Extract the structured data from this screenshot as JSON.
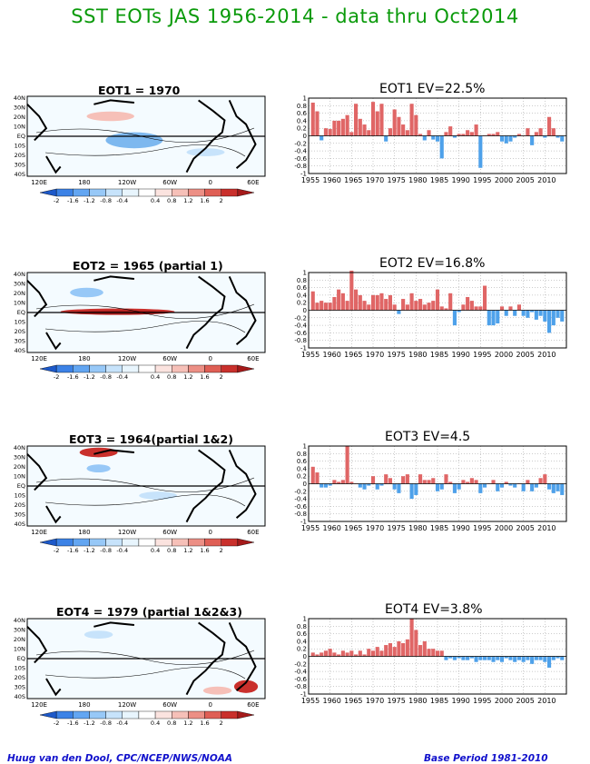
{
  "title": "SST EOTs JAS 1956-2014 - data thru Oct2014",
  "footer_left": "Huug van den Dool, CPC/NCEP/NWS/NOAA",
  "footer_right": "Base Period 1981-2010",
  "map": {
    "lat_labels": [
      "40N",
      "30N",
      "20N",
      "10N",
      "EQ",
      "10S",
      "20S",
      "30S",
      "40S"
    ],
    "lon_labels": [
      "120E",
      "180",
      "120W",
      "60W",
      "0",
      "60E"
    ],
    "colorbar_labels": [
      "-2",
      "-1.6",
      "-1.2",
      "-0.8",
      "-0.4",
      "0.4",
      "0.8",
      "1.2",
      "1.6",
      "2"
    ],
    "colorbar_colors": [
      "#1d59c9",
      "#3c82e6",
      "#63a6f2",
      "#97c8f7",
      "#c7e3fb",
      "#e8f5fd",
      "#ffffff",
      "#fbe3df",
      "#f6c0b8",
      "#ec8f85",
      "#df5f55",
      "#c9302c",
      "#a51a1a"
    ]
  },
  "bar_axis": {
    "yticks": [
      "1",
      "0.8",
      "0.6",
      "0.4",
      "0.2",
      "0",
      "-0.2",
      "-0.4",
      "-0.6",
      "-0.8",
      "-1"
    ],
    "xticks": [
      "1955",
      "1960",
      "1965",
      "1970",
      "1975",
      "1980",
      "1985",
      "1990",
      "1995",
      "2000",
      "2005",
      "2010"
    ]
  },
  "panels": [
    {
      "map_title": "EOT1    = 1970",
      "bar_title": "EOT1  EV=22.5%"
    },
    {
      "map_title": "EOT2    = 1965 (partial 1)",
      "bar_title": "EOT2  EV=16.8%"
    },
    {
      "map_title": "EOT3    = 1964(partial 1&2)",
      "bar_title": "EOT3   EV=4.5"
    },
    {
      "map_title": "EOT4    = 1979 (partial 1&2&3)",
      "bar_title": "EOT4   EV=3.8%"
    }
  ],
  "chart_data": [
    {
      "type": "bar",
      "title": "EOT1  EV=22.5%",
      "x": [
        1956,
        1957,
        1958,
        1959,
        1960,
        1961,
        1962,
        1963,
        1964,
        1965,
        1966,
        1967,
        1968,
        1969,
        1970,
        1971,
        1972,
        1973,
        1974,
        1975,
        1976,
        1977,
        1978,
        1979,
        1980,
        1981,
        1982,
        1983,
        1984,
        1985,
        1986,
        1987,
        1988,
        1989,
        1990,
        1991,
        1992,
        1993,
        1994,
        1995,
        1996,
        1997,
        1998,
        1999,
        2000,
        2001,
        2002,
        2003,
        2004,
        2005,
        2006,
        2007,
        2008,
        2009,
        2010,
        2011,
        2012,
        2013,
        2014
      ],
      "values": [
        0.88,
        0.65,
        -0.12,
        0.2,
        0.18,
        0.4,
        0.4,
        0.45,
        0.55,
        0.1,
        0.85,
        0.45,
        0.3,
        0.15,
        0.9,
        0.65,
        0.85,
        -0.15,
        0.2,
        0.7,
        0.5,
        0.3,
        0.15,
        0.85,
        0.55,
        0.05,
        -0.12,
        0.15,
        -0.1,
        -0.15,
        -0.6,
        0.1,
        0.25,
        -0.05,
        0.05,
        0.05,
        0.15,
        0.1,
        0.3,
        -0.85,
        0.0,
        0.05,
        0.05,
        0.1,
        -0.15,
        -0.2,
        -0.15,
        -0.05,
        0.05,
        0.0,
        0.2,
        -0.25,
        0.1,
        0.2,
        -0.05,
        0.5,
        0.2,
        -0.05,
        -0.15
      ],
      "ylim": [
        -1,
        1
      ]
    },
    {
      "type": "bar",
      "title": "EOT2  EV=16.8%",
      "x": [
        1956,
        1957,
        1958,
        1959,
        1960,
        1961,
        1962,
        1963,
        1964,
        1965,
        1966,
        1967,
        1968,
        1969,
        1970,
        1971,
        1972,
        1973,
        1974,
        1975,
        1976,
        1977,
        1978,
        1979,
        1980,
        1981,
        1982,
        1983,
        1984,
        1985,
        1986,
        1987,
        1988,
        1989,
        1990,
        1991,
        1992,
        1993,
        1994,
        1995,
        1996,
        1997,
        1998,
        1999,
        2000,
        2001,
        2002,
        2003,
        2004,
        2005,
        2006,
        2007,
        2008,
        2009,
        2010,
        2011,
        2012,
        2013,
        2014
      ],
      "values": [
        0.5,
        0.2,
        0.25,
        0.2,
        0.2,
        0.35,
        0.55,
        0.45,
        0.25,
        1.05,
        0.55,
        0.4,
        0.25,
        0.15,
        0.4,
        0.4,
        0.45,
        0.3,
        0.4,
        0.15,
        -0.1,
        0.3,
        0.15,
        0.45,
        0.25,
        0.3,
        0.15,
        0.2,
        0.25,
        0.55,
        0.1,
        0.05,
        0.45,
        -0.4,
        -0.05,
        0.15,
        0.35,
        0.25,
        0.1,
        0.1,
        0.65,
        -0.4,
        -0.4,
        -0.35,
        0.1,
        -0.15,
        0.1,
        -0.15,
        0.15,
        -0.15,
        -0.2,
        -0.05,
        -0.25,
        -0.15,
        -0.3,
        -0.6,
        -0.4,
        -0.2,
        -0.3
      ],
      "ylim": [
        -1,
        1
      ]
    },
    {
      "type": "bar",
      "title": "EOT3   EV=4.5",
      "x": [
        1956,
        1957,
        1958,
        1959,
        1960,
        1961,
        1962,
        1963,
        1964,
        1965,
        1966,
        1967,
        1968,
        1969,
        1970,
        1971,
        1972,
        1973,
        1974,
        1975,
        1976,
        1977,
        1978,
        1979,
        1980,
        1981,
        1982,
        1983,
        1984,
        1985,
        1986,
        1987,
        1988,
        1989,
        1990,
        1991,
        1992,
        1993,
        1994,
        1995,
        1996,
        1997,
        1998,
        1999,
        2000,
        2001,
        2002,
        2003,
        2004,
        2005,
        2006,
        2007,
        2008,
        2009,
        2010,
        2011,
        2012,
        2013,
        2014
      ],
      "values": [
        0.45,
        0.3,
        -0.1,
        -0.1,
        -0.05,
        0.1,
        0.05,
        0.1,
        1.0,
        0.05,
        0.0,
        -0.1,
        -0.15,
        -0.05,
        0.2,
        -0.15,
        -0.05,
        0.25,
        0.15,
        -0.15,
        -0.25,
        0.2,
        0.25,
        -0.4,
        -0.3,
        0.25,
        0.1,
        0.1,
        0.15,
        -0.2,
        -0.15,
        0.25,
        0.05,
        -0.25,
        -0.15,
        0.1,
        0.05,
        0.15,
        0.1,
        -0.25,
        -0.1,
        0.0,
        0.1,
        -0.2,
        -0.1,
        0.05,
        -0.05,
        -0.1,
        0.0,
        -0.2,
        0.1,
        -0.2,
        -0.1,
        0.15,
        0.25,
        -0.15,
        -0.25,
        -0.2,
        -0.3
      ],
      "ylim": [
        -1,
        1
      ]
    },
    {
      "type": "bar",
      "title": "EOT4   EV=3.8%",
      "x": [
        1956,
        1957,
        1958,
        1959,
        1960,
        1961,
        1962,
        1963,
        1964,
        1965,
        1966,
        1967,
        1968,
        1969,
        1970,
        1971,
        1972,
        1973,
        1974,
        1975,
        1976,
        1977,
        1978,
        1979,
        1980,
        1981,
        1982,
        1983,
        1984,
        1985,
        1986,
        1987,
        1988,
        1989,
        1990,
        1991,
        1992,
        1993,
        1994,
        1995,
        1996,
        1997,
        1998,
        1999,
        2000,
        2001,
        2002,
        2003,
        2004,
        2005,
        2006,
        2007,
        2008,
        2009,
        2010,
        2011,
        2012,
        2013,
        2014
      ],
      "values": [
        0.1,
        0.05,
        0.1,
        0.15,
        0.2,
        0.1,
        0.05,
        0.15,
        0.1,
        0.15,
        0.05,
        0.15,
        0.05,
        0.2,
        0.15,
        0.25,
        0.15,
        0.3,
        0.35,
        0.25,
        0.4,
        0.35,
        0.45,
        1.0,
        0.7,
        0.3,
        0.4,
        0.2,
        0.2,
        0.15,
        0.15,
        -0.1,
        -0.05,
        -0.1,
        -0.05,
        -0.1,
        -0.1,
        -0.05,
        -0.15,
        -0.1,
        -0.1,
        -0.1,
        -0.15,
        -0.1,
        -0.15,
        -0.05,
        -0.1,
        -0.15,
        -0.1,
        -0.15,
        -0.1,
        -0.2,
        -0.1,
        -0.1,
        -0.15,
        -0.3,
        -0.1,
        -0.05,
        -0.1
      ],
      "ylim": [
        -1,
        1
      ]
    }
  ]
}
